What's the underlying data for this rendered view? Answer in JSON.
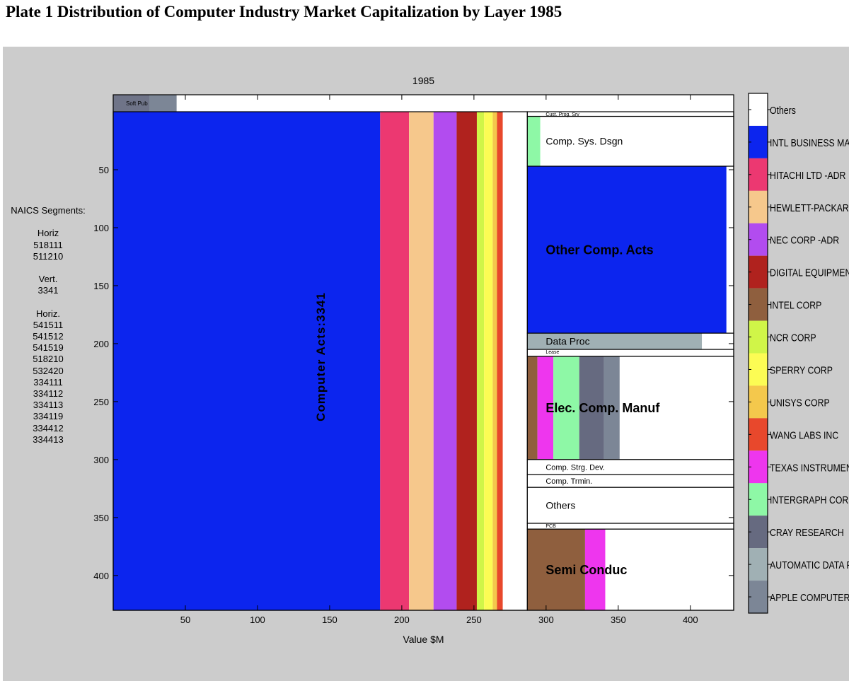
{
  "plate_title": "Plate 1 Distribution of Computer Industry Market Capitalization by Layer 1985",
  "naics_panel": {
    "heading": "NAICS Segments:",
    "groups": [
      {
        "label": "Horiz",
        "codes": [
          "518111",
          "511210"
        ]
      },
      {
        "label": "Vert.",
        "codes": [
          "3341"
        ]
      },
      {
        "label": "Horiz.",
        "codes": [
          "541511",
          "541512",
          "541519",
          "518210",
          "532420",
          "334111",
          "334112",
          "334113",
          "334119",
          "334412",
          "334413"
        ]
      }
    ]
  },
  "colors": {
    "background": "#cccccc",
    "plot_bg": "#ffffff",
    "others": "#ffffff",
    "ibm": "#0c25ee",
    "hitachi": "#ec3871",
    "hewlett_packard": "#f6c88c",
    "nec": "#b24cef",
    "digital_equipment": "#b0221e",
    "intel": "#8f5f3e",
    "ncr": "#d0f548",
    "sperry": "#fcfc54",
    "unisys": "#f4c84c",
    "wang": "#e8482c",
    "texas_instruments": "#ee36ee",
    "intergraph": "#8ef8a6",
    "cray": "#666a80",
    "automatic_data": "#a0b0b4",
    "apple": "#7c8696",
    "soft_pub": "#7c8696"
  },
  "chart_data": {
    "type": "treemap",
    "title": "1985",
    "xlabel": "Value $M",
    "ylabel": "",
    "xlim": [
      0,
      430
    ],
    "ylim": [
      0,
      430
    ],
    "y_inverted": true,
    "xticks": [
      50,
      100,
      150,
      200,
      250,
      300,
      350,
      400
    ],
    "yticks": [
      50,
      100,
      150,
      200,
      250,
      300,
      350,
      400
    ],
    "top_strip": {
      "label": "Soft Pub",
      "y0": -15,
      "y1": 0,
      "segments": [
        {
          "company": "Others",
          "color": "#6f7488",
          "x0": 0,
          "x1": 25
        },
        {
          "company": "APPLE COMPUTER",
          "color": "#7c8696",
          "x0": 25,
          "x1": 44
        },
        {
          "company": "Others",
          "color": "#ffffff",
          "x0": 44,
          "x1": 430
        }
      ]
    },
    "layers": [
      {
        "name": "Computer Acts:3341",
        "label_orientation": "vertical",
        "x0": 0,
        "x1": 287,
        "y0": 0,
        "y1": 430,
        "segments": [
          {
            "company": "INTL BUSINESS MA",
            "color": "#0c25ee",
            "x0": 0,
            "x1": 185
          },
          {
            "company": "HITACHI LTD -ADR",
            "color": "#ec3871",
            "x0": 185,
            "x1": 205
          },
          {
            "company": "HEWLETT-PACKARI",
            "color": "#f6c88c",
            "x0": 205,
            "x1": 222
          },
          {
            "company": "NEC CORP -ADR",
            "color": "#b24cef",
            "x0": 222,
            "x1": 238
          },
          {
            "company": "DIGITAL EQUIPMEN",
            "color": "#b0221e",
            "x0": 238,
            "x1": 252
          },
          {
            "company": "NCR CORP",
            "color": "#d0f548",
            "x0": 252,
            "x1": 257
          },
          {
            "company": "SPERRY CORP",
            "color": "#fcfc54",
            "x0": 257,
            "x1": 263
          },
          {
            "company": "UNISYS CORP",
            "color": "#f4c84c",
            "x0": 263,
            "x1": 266
          },
          {
            "company": "WANG LABS INC",
            "color": "#e8482c",
            "x0": 266,
            "x1": 270
          },
          {
            "company": "Others",
            "color": "#ffffff",
            "x0": 270,
            "x1": 287
          }
        ]
      },
      {
        "name": "Cust. Prog. Srv",
        "label_size": "tiny",
        "x0": 287,
        "x1": 430,
        "y0": 0,
        "y1": 4,
        "segments": [
          {
            "company": "Others",
            "color": "#ffffff",
            "x0": 287,
            "x1": 430
          }
        ]
      },
      {
        "name": "Comp. Sys. Dsgn",
        "label_size": "normal",
        "x0": 287,
        "x1": 430,
        "y0": 4,
        "y1": 47,
        "segments": [
          {
            "company": "INTERGRAPH CORF",
            "color": "#8ef8a6",
            "x0": 287,
            "x1": 296
          },
          {
            "company": "Others",
            "color": "#ffffff",
            "x0": 296,
            "x1": 430
          }
        ]
      },
      {
        "name": "Other Comp. Acts",
        "label_size": "large",
        "x0": 287,
        "x1": 430,
        "y0": 47,
        "y1": 191,
        "segments": [
          {
            "company": "INTL BUSINESS MA",
            "color": "#0c25ee",
            "x0": 287,
            "x1": 425
          },
          {
            "company": "Others",
            "color": "#ffffff",
            "x0": 425,
            "x1": 430
          }
        ]
      },
      {
        "name": "Data Proc",
        "label_size": "normal",
        "x0": 287,
        "x1": 430,
        "y0": 191,
        "y1": 205,
        "segments": [
          {
            "company": "AUTOMATIC DATA F",
            "color": "#a0b0b4",
            "x0": 287,
            "x1": 408
          },
          {
            "company": "Others",
            "color": "#ffffff",
            "x0": 408,
            "x1": 430
          }
        ]
      },
      {
        "name": "Lease",
        "label_size": "tiny",
        "x0": 287,
        "x1": 430,
        "y0": 205,
        "y1": 211,
        "segments": [
          {
            "company": "Others",
            "color": "#ffffff",
            "x0": 287,
            "x1": 430
          }
        ]
      },
      {
        "name": "Elec. Comp. Manuf",
        "label_size": "large",
        "x0": 287,
        "x1": 430,
        "y0": 211,
        "y1": 300,
        "segments": [
          {
            "company": "INTEL CORP",
            "color": "#8f5f3e",
            "x0": 287,
            "x1": 294
          },
          {
            "company": "TEXAS INSTRUMEN",
            "color": "#ee36ee",
            "x0": 294,
            "x1": 305
          },
          {
            "company": "INTERGRAPH CORF",
            "color": "#8ef8a6",
            "x0": 305,
            "x1": 323
          },
          {
            "company": "CRAY RESEARCH",
            "color": "#666a80",
            "x0": 323,
            "x1": 340
          },
          {
            "company": "APPLE COMPUTER",
            "color": "#7c8696",
            "x0": 340,
            "x1": 351
          },
          {
            "company": "Others",
            "color": "#ffffff",
            "x0": 351,
            "x1": 430
          }
        ]
      },
      {
        "name": "Comp. Strg. Dev.",
        "label_size": "small",
        "x0": 287,
        "x1": 430,
        "y0": 300,
        "y1": 313,
        "segments": [
          {
            "company": "Others",
            "color": "#ffffff",
            "x0": 287,
            "x1": 430
          }
        ]
      },
      {
        "name": "Comp. Trmin.",
        "label_size": "small",
        "x0": 287,
        "x1": 430,
        "y0": 313,
        "y1": 324,
        "segments": [
          {
            "company": "Others",
            "color": "#ffffff",
            "x0": 287,
            "x1": 430
          }
        ]
      },
      {
        "name": "Others",
        "label_size": "normal",
        "x0": 287,
        "x1": 430,
        "y0": 324,
        "y1": 355,
        "segments": [
          {
            "company": "Others",
            "color": "#ffffff",
            "x0": 287,
            "x1": 430
          }
        ]
      },
      {
        "name": "PCB",
        "label_size": "tiny",
        "x0": 287,
        "x1": 430,
        "y0": 355,
        "y1": 360,
        "segments": [
          {
            "company": "Others",
            "color": "#ffffff",
            "x0": 287,
            "x1": 430
          }
        ]
      },
      {
        "name": "Semi Conduc",
        "label_size": "large",
        "x0": 287,
        "x1": 430,
        "y0": 360,
        "y1": 430,
        "segments": [
          {
            "company": "INTEL CORP",
            "color": "#8f5f3e",
            "x0": 287,
            "x1": 327
          },
          {
            "company": "TEXAS INSTRUMEN",
            "color": "#ee36ee",
            "x0": 327,
            "x1": 341
          },
          {
            "company": "Others",
            "color": "#ffffff",
            "x0": 341,
            "x1": 430
          }
        ]
      }
    ],
    "legend": {
      "position": "right",
      "entries": [
        {
          "name": "Others",
          "color": "#ffffff"
        },
        {
          "name": "INTL BUSINESS MA",
          "color": "#0c25ee"
        },
        {
          "name": "HITACHI LTD -ADR",
          "color": "#ec3871"
        },
        {
          "name": "HEWLETT-PACKARI",
          "color": "#f6c88c"
        },
        {
          "name": "NEC CORP -ADR",
          "color": "#b24cef"
        },
        {
          "name": "DIGITAL EQUIPMEN",
          "color": "#b0221e"
        },
        {
          "name": "INTEL CORP",
          "color": "#8f5f3e"
        },
        {
          "name": "NCR CORP",
          "color": "#d0f548"
        },
        {
          "name": "SPERRY CORP",
          "color": "#fcfc54"
        },
        {
          "name": "UNISYS CORP",
          "color": "#f4c84c"
        },
        {
          "name": "WANG LABS INC",
          "color": "#e8482c"
        },
        {
          "name": "TEXAS INSTRUMEN",
          "color": "#ee36ee"
        },
        {
          "name": "INTERGRAPH CORF",
          "color": "#8ef8a6"
        },
        {
          "name": "CRAY RESEARCH",
          "color": "#666a80"
        },
        {
          "name": "AUTOMATIC DATA F",
          "color": "#a0b0b4"
        },
        {
          "name": "APPLE COMPUTER",
          "color": "#7c8696"
        }
      ]
    }
  }
}
